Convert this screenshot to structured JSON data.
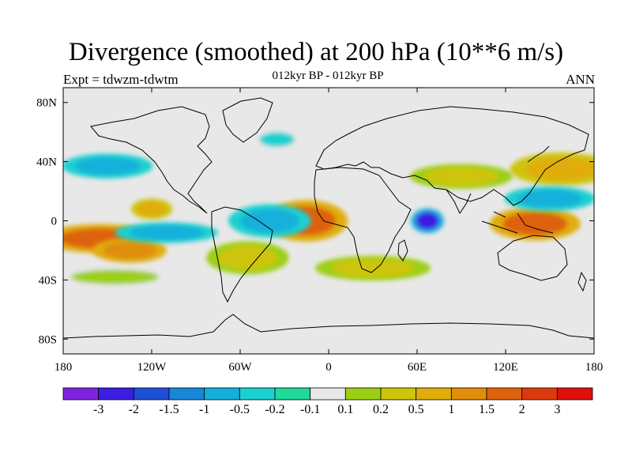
{
  "title": "Divergence (smoothed) at 200 hPa (10**6 m/s)",
  "subtitle": "012kyr BP - 012kyr BP",
  "left_label": "Expt = tdwzm-tdwtm",
  "right_label": "ANN",
  "chart_data": {
    "type": "heatmap",
    "title": "Divergence (smoothed) at 200 hPa (10**6 m/s)",
    "subtitle": "012kyr BP - 012kyr BP",
    "xlabel": "",
    "ylabel": "",
    "x_range": [
      -180,
      180
    ],
    "y_range": [
      -90,
      90
    ],
    "x_ticks": [
      -180,
      -120,
      -60,
      0,
      60,
      120,
      180
    ],
    "x_tick_labels": [
      "180",
      "120W",
      "60W",
      "0",
      "60E",
      "120E",
      "180"
    ],
    "y_ticks": [
      80,
      40,
      0,
      -40,
      -80
    ],
    "y_tick_labels": [
      "80N",
      "40N",
      "0",
      "40S",
      "80S"
    ],
    "colorbar": {
      "colors": [
        "#7f22e0",
        "#3b1ee0",
        "#1f4fd6",
        "#1a86d8",
        "#12b0da",
        "#1cd0d0",
        "#20d99a",
        "#e8e8e8",
        "#9ccf14",
        "#cfc40c",
        "#e0ad0c",
        "#e08e0c",
        "#de620c",
        "#dc3a0e",
        "#dd0f0f"
      ],
      "labels": [
        "-3",
        "-2",
        "-1.5",
        "-1",
        "-0.5",
        "-0.2",
        "-0.1",
        "0.1",
        "0.2",
        "0.5",
        "1",
        "1.5",
        "2",
        "3"
      ]
    },
    "features": [
      {
        "lon": -155,
        "lat": -12,
        "value": 2.0,
        "rlon": 28,
        "rlat": 7
      },
      {
        "lon": -135,
        "lat": -20,
        "value": 1.5,
        "rlon": 18,
        "rlat": 6
      },
      {
        "lon": -15,
        "lat": 0,
        "value": 2.0,
        "rlon": 20,
        "rlat": 10
      },
      {
        "lon": 67,
        "lat": 0,
        "value": -2.0,
        "rlon": 8,
        "rlat": 6
      },
      {
        "lon": 140,
        "lat": -2,
        "value": 2.0,
        "rlon": 22,
        "rlat": 8
      },
      {
        "lon": 158,
        "lat": 35,
        "value": 1.0,
        "rlon": 25,
        "rlat": 8
      },
      {
        "lon": 150,
        "lat": 15,
        "value": -0.5,
        "rlon": 22,
        "rlat": 6
      },
      {
        "lon": -150,
        "lat": 37,
        "value": -0.5,
        "rlon": 22,
        "rlat": 6
      },
      {
        "lon": -120,
        "lat": 8,
        "value": 1.0,
        "rlon": 10,
        "rlat": 5
      },
      {
        "lon": -110,
        "lat": -8,
        "value": -0.5,
        "rlon": 25,
        "rlat": 5
      },
      {
        "lon": -145,
        "lat": -38,
        "value": 0.2,
        "rlon": 30,
        "rlat": 5
      },
      {
        "lon": 30,
        "lat": -32,
        "value": 0.5,
        "rlon": 28,
        "rlat": 6
      },
      {
        "lon": -35,
        "lat": 55,
        "value": -0.2,
        "rlon": 12,
        "rlat": 5
      },
      {
        "lon": -40,
        "lat": 0,
        "value": -0.5,
        "rlon": 20,
        "rlat": 8
      },
      {
        "lon": 90,
        "lat": 30,
        "value": 0.5,
        "rlon": 25,
        "rlat": 6
      },
      {
        "lon": -55,
        "lat": -25,
        "value": 0.5,
        "rlon": 20,
        "rlat": 8
      }
    ]
  }
}
